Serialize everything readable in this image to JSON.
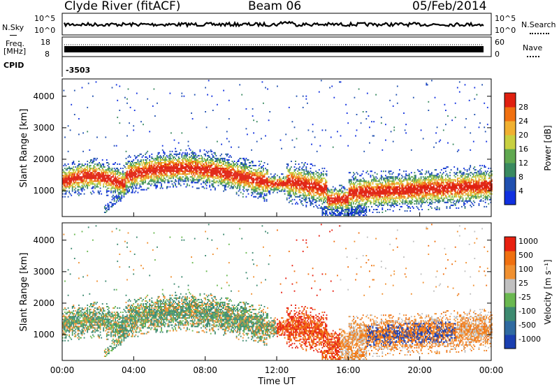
{
  "header": {
    "station": "Clyde River (fitACF)",
    "beam": "Beam 06",
    "date": "05/Feb/2014"
  },
  "strip1": {
    "left_label": "N.Sky",
    "right_label": "N.Search",
    "left_ticks": [
      "10^5",
      "10^0"
    ],
    "right_ticks": [
      "10^5",
      "10^0"
    ]
  },
  "strip2": {
    "left_label_line1": "Freq.",
    "left_label_line2": "[MHz]",
    "left_ticks": [
      "18",
      "8"
    ],
    "right_ticks": [
      "60",
      "0"
    ],
    "right_label": "Nave"
  },
  "strip3": {
    "label": "CPID",
    "value": "-3503"
  },
  "x_axis": {
    "label": "Time UT",
    "ticks": [
      "00:00",
      "04:00",
      "08:00",
      "12:00",
      "16:00",
      "20:00",
      "00:00"
    ]
  },
  "chart_data": [
    {
      "type": "heatmap",
      "panel": "power",
      "ylabel": "Slant Range [km]",
      "yticks": [
        1000,
        2000,
        3000,
        4000
      ],
      "ylim": [
        180,
        4550
      ],
      "xlim": [
        0,
        24
      ],
      "colorbar": {
        "label": "Power [dB]",
        "ticks": [
          4,
          8,
          12,
          16,
          20,
          24,
          28
        ],
        "colors": [
          "#1030e0",
          "#2050b0",
          "#3a8a60",
          "#60a850",
          "#c8d040",
          "#f0b030",
          "#f07010",
          "#e02010"
        ]
      },
      "bands": [
        {
          "t": [
            0,
            3.5
          ],
          "range": [
            750,
            1700
          ],
          "level": "strong"
        },
        {
          "t": [
            3.5,
            11.5
          ],
          "range": [
            900,
            2000
          ],
          "level": "strong"
        },
        {
          "t": [
            12,
            14.5
          ],
          "range": [
            650,
            1900
          ],
          "level": "strong"
        },
        {
          "t": [
            15,
            24
          ],
          "range": [
            300,
            1500
          ],
          "level": "strong"
        }
      ]
    },
    {
      "type": "heatmap",
      "panel": "velocity",
      "ylabel": "Slant Range [km]",
      "yticks": [
        1000,
        2000,
        3000,
        4000
      ],
      "ylim": [
        180,
        4550
      ],
      "xlim": [
        0,
        24
      ],
      "colorbar": {
        "label": "Velocity [m s⁻¹]",
        "ticks": [
          "1000",
          "500",
          "100",
          "25",
          "-25",
          "-100",
          "-500",
          "-1000"
        ],
        "colors": [
          "#1a3fb0",
          "#2f6aa0",
          "#3d8a70",
          "#6ab850",
          "#c0c0c0",
          "#f09030",
          "#f07010",
          "#e82010"
        ]
      }
    }
  ]
}
